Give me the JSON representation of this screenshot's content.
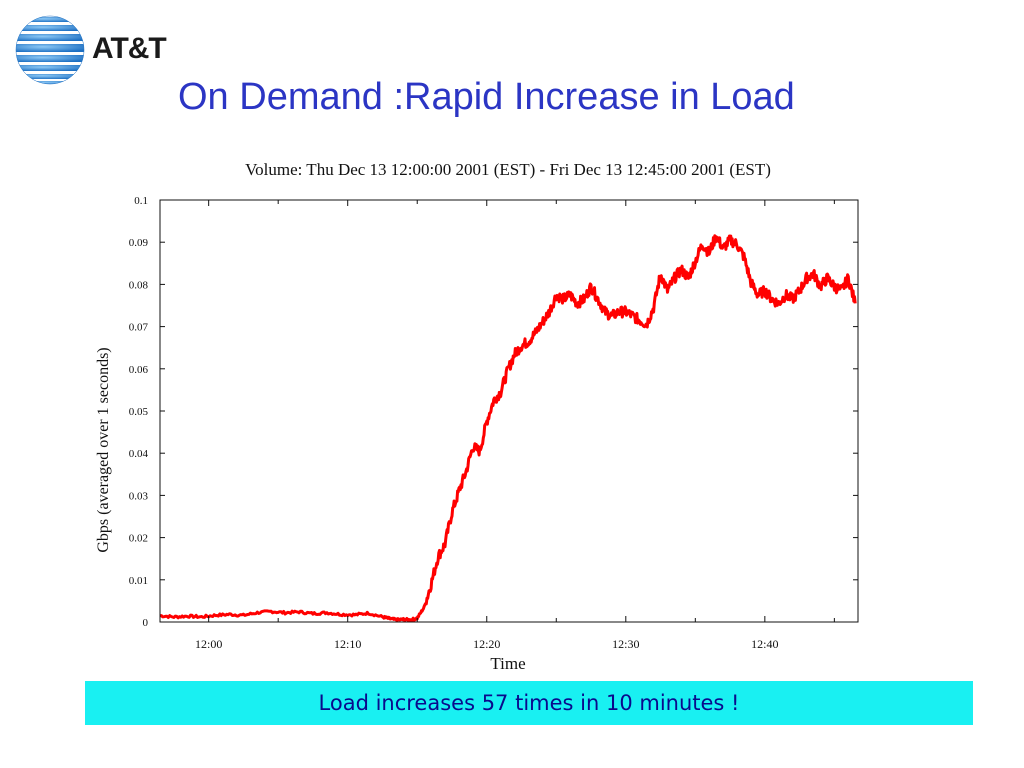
{
  "brand": {
    "name": "AT&T",
    "logo_icon": "att-globe-icon",
    "logo_colors": [
      "#1d6fc2",
      "#5aa7e6"
    ]
  },
  "slide": {
    "title": "On Demand :Rapid Increase in Load",
    "callout": "Load increases 57 times in 10 minutes !",
    "title_color": "#2b35c4",
    "callout_bg": "#19f0f2",
    "callout_text_color": "#0a0a8c"
  },
  "chart_data": {
    "type": "line",
    "title": "Volume: Thu Dec 13 12:00:00 2001 (EST) - Fri Dec 13 12:45:00 2001 (EST)",
    "xlabel": "Time",
    "ylabel": "Gbps (averaged over 1 seconds)",
    "x_unit": "minutes after 12:00",
    "xlim": [
      -3.5,
      46.7
    ],
    "ylim": [
      0,
      0.1
    ],
    "x_ticks": [
      {
        "value": 0,
        "label": "12:00"
      },
      {
        "value": 10,
        "label": "12:10"
      },
      {
        "value": 20,
        "label": "12:20"
      },
      {
        "value": 30,
        "label": "12:30"
      },
      {
        "value": 40,
        "label": "12:40"
      }
    ],
    "y_ticks": [
      {
        "value": 0,
        "label": "0"
      },
      {
        "value": 0.01,
        "label": "0.01"
      },
      {
        "value": 0.02,
        "label": "0.02"
      },
      {
        "value": 0.03,
        "label": "0.03"
      },
      {
        "value": 0.04,
        "label": "0.04"
      },
      {
        "value": 0.05,
        "label": "0.05"
      },
      {
        "value": 0.06,
        "label": "0.06"
      },
      {
        "value": 0.07,
        "label": "0.07"
      },
      {
        "value": 0.08,
        "label": "0.08"
      },
      {
        "value": 0.09,
        "label": "0.09"
      },
      {
        "value": 0.1,
        "label": "0.1"
      }
    ],
    "grid": false,
    "series": [
      {
        "color": "#ff0000",
        "x": [
          -3.5,
          -2.5,
          -1.5,
          -0.5,
          0.5,
          1.5,
          2.5,
          3.5,
          4.5,
          5.5,
          6.5,
          7.5,
          8.5,
          9.5,
          10.5,
          11.5,
          12.5,
          13.0,
          13.5,
          14.0,
          14.5,
          15.0,
          15.5,
          16.0,
          16.5,
          17.0,
          17.5,
          18.0,
          18.5,
          19.0,
          19.5,
          20.0,
          20.5,
          21.0,
          21.5,
          22.0,
          22.5,
          23.0,
          23.5,
          24.0,
          24.5,
          25.0,
          25.5,
          26.0,
          26.5,
          27.0,
          27.5,
          28.0,
          28.5,
          29.0,
          29.5,
          30.0,
          30.5,
          31.0,
          31.5,
          32.0,
          32.5,
          33.0,
          33.5,
          34.0,
          34.5,
          35.0,
          35.5,
          36.0,
          36.5,
          37.0,
          37.5,
          38.0,
          38.5,
          39.0,
          39.5,
          40.0,
          40.5,
          41.0,
          41.5,
          42.0,
          42.5,
          43.0,
          43.5,
          44.0,
          44.5,
          45.0,
          45.5,
          46.0,
          46.5
        ],
        "y": [
          0.0015,
          0.0012,
          0.0014,
          0.0012,
          0.0016,
          0.0018,
          0.0016,
          0.0022,
          0.0025,
          0.0022,
          0.0024,
          0.002,
          0.0022,
          0.0018,
          0.0017,
          0.0021,
          0.0012,
          0.0008,
          0.0005,
          0.0006,
          0.0005,
          0.0009,
          0.0035,
          0.009,
          0.0155,
          0.0185,
          0.026,
          0.031,
          0.0355,
          0.0415,
          0.0405,
          0.0475,
          0.0525,
          0.0545,
          0.0595,
          0.0635,
          0.0655,
          0.0665,
          0.0685,
          0.071,
          0.0735,
          0.0775,
          0.0765,
          0.0775,
          0.0755,
          0.0765,
          0.0795,
          0.0765,
          0.0735,
          0.0725,
          0.0735,
          0.0735,
          0.0725,
          0.0715,
          0.0705,
          0.0745,
          0.0825,
          0.0785,
          0.0815,
          0.0835,
          0.0815,
          0.0855,
          0.0895,
          0.0875,
          0.0915,
          0.0885,
          0.0905,
          0.0895,
          0.0865,
          0.0805,
          0.0775,
          0.0785,
          0.0765,
          0.0755,
          0.0775,
          0.0765,
          0.0785,
          0.0815,
          0.0825,
          0.0795,
          0.0815,
          0.0795,
          0.0785,
          0.0815,
          0.0755
        ]
      }
    ]
  }
}
